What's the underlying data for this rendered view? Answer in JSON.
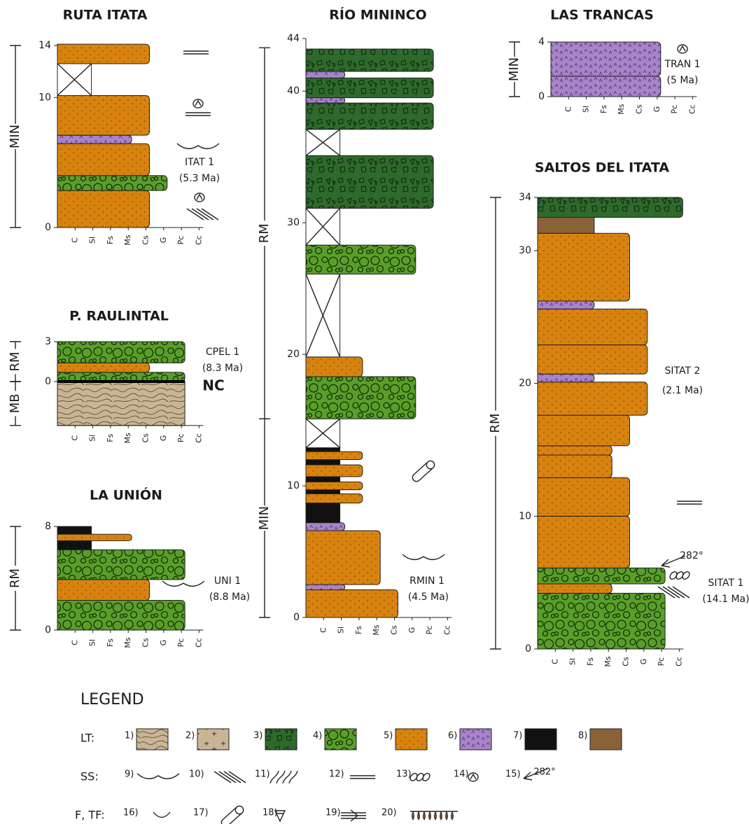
{
  "grain_sizes": [
    "C",
    "Sl",
    "Fs",
    "Ms",
    "Cs",
    "G",
    "Pc",
    "Cc"
  ],
  "columns": [
    {
      "title": "RUTA ITATA",
      "ticks": [
        0,
        10,
        14
      ],
      "units": [
        {
          "label": "MIN",
          "base": 0,
          "top": 14
        }
      ],
      "beds": [
        {
          "base": 0,
          "top": 2.85,
          "grain": "Cs",
          "lithology": 5
        },
        {
          "base": 2.85,
          "top": 4,
          "grain": "G",
          "lithology": 4
        },
        {
          "base": 4,
          "top": 6.45,
          "grain": "Cs",
          "lithology": 5
        },
        {
          "base": 6.45,
          "top": 7.1,
          "grain": "Ms",
          "lithology": 6
        },
        {
          "base": 7.1,
          "top": 10.15,
          "grain": "Cs",
          "lithology": 5
        },
        {
          "base": 10.15,
          "top": 12.6,
          "grain": "Sl",
          "lithology": null
        },
        {
          "base": 12.6,
          "top": 14.1,
          "grain": "Cs",
          "lithology": 5
        }
      ],
      "notes": [
        "ITAT 1",
        "(5.3 Ma)"
      ]
    },
    {
      "title": "P. RAULINTAL",
      "ticks": [
        0,
        3
      ],
      "units": [
        {
          "label": "RM",
          "base": 0,
          "top": 3
        },
        {
          "label": "MB",
          "base": -3.3,
          "top": 0
        }
      ],
      "beds": [
        {
          "base": -3.3,
          "top": 0,
          "grain": "Pc",
          "lithology": 1
        },
        {
          "base": 0,
          "top": 0.7,
          "grain": "Pc",
          "lithology": 4
        },
        {
          "base": 0.7,
          "top": 1.4,
          "grain": "Cs",
          "lithology": 5
        },
        {
          "base": 1.4,
          "top": 3,
          "grain": "Pc",
          "lithology": 4
        }
      ],
      "notes": [
        "CPEL 1",
        "(8.3 Ma)",
        "NC"
      ]
    },
    {
      "title": "LA UNIÓN",
      "ticks": [
        0,
        8
      ],
      "units": [
        {
          "label": "RM",
          "base": 0,
          "top": 8
        }
      ],
      "beds": [
        {
          "base": 0,
          "top": 2.3,
          "grain": "Pc",
          "lithology": 4
        },
        {
          "base": 2.3,
          "top": 3.9,
          "grain": "Cs",
          "lithology": 5
        },
        {
          "base": 3.9,
          "top": 6.2,
          "grain": "Pc",
          "lithology": 4
        },
        {
          "base": 6.2,
          "top": 8,
          "grain": "Sl",
          "lithology": 7
        },
        {
          "base": 6.9,
          "top": 7.4,
          "grain": "Ms",
          "lithology": 5
        }
      ],
      "notes": [
        "UNI 1",
        "(8.8 Ma)"
      ]
    },
    {
      "title": "RÍO MININCO",
      "ticks": [
        0,
        10,
        20,
        30,
        40,
        44
      ],
      "units": [
        {
          "label": "MIN",
          "base": 0,
          "top": 15.1
        },
        {
          "label": "RM",
          "base": 15.1,
          "top": 43.3
        }
      ],
      "beds": [
        {
          "base": 0,
          "top": 2.1,
          "grain": "Cs",
          "lithology": 5
        },
        {
          "base": 2.1,
          "top": 2.5,
          "grain": "Sl",
          "lithology": 6
        },
        {
          "base": 2.5,
          "top": 6.6,
          "grain": "Ms",
          "lithology": 5
        },
        {
          "base": 6.6,
          "top": 7.2,
          "grain": "Sl",
          "lithology": 6
        },
        {
          "base": 7.2,
          "top": 12.9,
          "grain": "Sl",
          "lithology": 7
        },
        {
          "base": 8.7,
          "top": 9.4,
          "grain": "Fs",
          "lithology": 5
        },
        {
          "base": 9.7,
          "top": 10.3,
          "grain": "Fs",
          "lithology": 5
        },
        {
          "base": 10.7,
          "top": 11.6,
          "grain": "Fs",
          "lithology": 5
        },
        {
          "base": 12.0,
          "top": 12.6,
          "grain": "Fs",
          "lithology": 5
        },
        {
          "base": 12.9,
          "top": 15.1,
          "grain": "Sl",
          "lithology": null
        },
        {
          "base": 15.1,
          "top": 18.3,
          "grain": "G",
          "lithology": 4
        },
        {
          "base": 18.3,
          "top": 19.8,
          "grain": "Fs",
          "lithology": 5
        },
        {
          "base": 19.8,
          "top": 26.1,
          "grain": "Sl",
          "lithology": null
        },
        {
          "base": 26.1,
          "top": 28.3,
          "grain": "G",
          "lithology": 4
        },
        {
          "base": 28.3,
          "top": 31.1,
          "grain": "Sl",
          "lithology": null
        },
        {
          "base": 31.1,
          "top": 35.1,
          "grain": "Pc",
          "lithology": 3
        },
        {
          "base": 35.1,
          "top": 37.1,
          "grain": "Sl",
          "lithology": null
        },
        {
          "base": 37.1,
          "top": 39.1,
          "grain": "Pc",
          "lithology": 3
        },
        {
          "base": 39.1,
          "top": 39.5,
          "grain": "Sl",
          "lithology": 6
        },
        {
          "base": 39.5,
          "top": 41.0,
          "grain": "Pc",
          "lithology": 3
        },
        {
          "base": 41.0,
          "top": 41.5,
          "grain": "Sl",
          "lithology": 6
        },
        {
          "base": 41.5,
          "top": 43.2,
          "grain": "Pc",
          "lithology": 3
        }
      ],
      "notes": [
        "RMIN 1",
        "(4.5 Ma)"
      ]
    },
    {
      "title": "LAS TRANCAS",
      "ticks": [
        0,
        4
      ],
      "units": [
        {
          "label": "MIN",
          "base": 0,
          "top": 4
        }
      ],
      "beds": [
        {
          "base": 0,
          "top": 1.5,
          "grain": "G",
          "lithology": 6
        },
        {
          "base": 1.5,
          "top": 4,
          "grain": "G",
          "lithology": 6
        }
      ],
      "notes": [
        "TRAN 1",
        "(5 Ma)"
      ]
    },
    {
      "title": "SALTOS DEL ITATA",
      "ticks": [
        0,
        10,
        20,
        30,
        34
      ],
      "units": [
        {
          "label": "RM",
          "base": 0,
          "top": 34
        }
      ],
      "beds": [
        {
          "base": 0,
          "top": 4.2,
          "grain": "Pc",
          "lithology": 4
        },
        {
          "base": 4.2,
          "top": 4.9,
          "grain": "Ms",
          "lithology": 5
        },
        {
          "base": 4.9,
          "top": 6.1,
          "grain": "Pc",
          "lithology": 4
        },
        {
          "base": 6.1,
          "top": 10.0,
          "grain": "Cs",
          "lithology": 5
        },
        {
          "base": 10.0,
          "top": 12.9,
          "grain": "Cs",
          "lithology": 5
        },
        {
          "base": 12.9,
          "top": 14.6,
          "grain": "Ms",
          "lithology": 5
        },
        {
          "base": 14.6,
          "top": 15.3,
          "grain": "Ms",
          "lithology": 5
        },
        {
          "base": 15.3,
          "top": 17.6,
          "grain": "Cs",
          "lithology": 5
        },
        {
          "base": 17.6,
          "top": 20.1,
          "grain": "G",
          "lithology": 5
        },
        {
          "base": 20.1,
          "top": 20.7,
          "grain": "Fs",
          "lithology": 6
        },
        {
          "base": 20.7,
          "top": 22.9,
          "grain": "G",
          "lithology": 5
        },
        {
          "base": 22.9,
          "top": 25.6,
          "grain": "G",
          "lithology": 5
        },
        {
          "base": 25.6,
          "top": 26.2,
          "grain": "Fs",
          "lithology": 6
        },
        {
          "base": 26.2,
          "top": 31.3,
          "grain": "Cs",
          "lithology": 5
        },
        {
          "base": 31.3,
          "top": 32.5,
          "grain": "Fs",
          "lithology": 8
        },
        {
          "base": 32.5,
          "top": 34,
          "grain": "Cc",
          "lithology": 3
        }
      ],
      "notes": [
        "SITAT 2",
        "(2.1 Ma)",
        "282°",
        "SITAT 1",
        "(14.1 Ma)"
      ]
    }
  ],
  "legend": {
    "title": "LEGEND",
    "rows": [
      {
        "label": "LT:",
        "items": [
          "1)",
          "2)",
          "3)",
          "4)",
          "5)",
          "6)",
          "7)",
          "8)"
        ]
      },
      {
        "label": "SS:",
        "items": [
          "9)",
          "10)",
          "11)",
          "12)",
          "13)",
          "14)",
          "15)"
        ]
      },
      {
        "label": "F, TF:",
        "items": [
          "16)",
          "17)",
          "18)",
          "19)",
          "20)"
        ]
      }
    ],
    "angle": "282°"
  }
}
